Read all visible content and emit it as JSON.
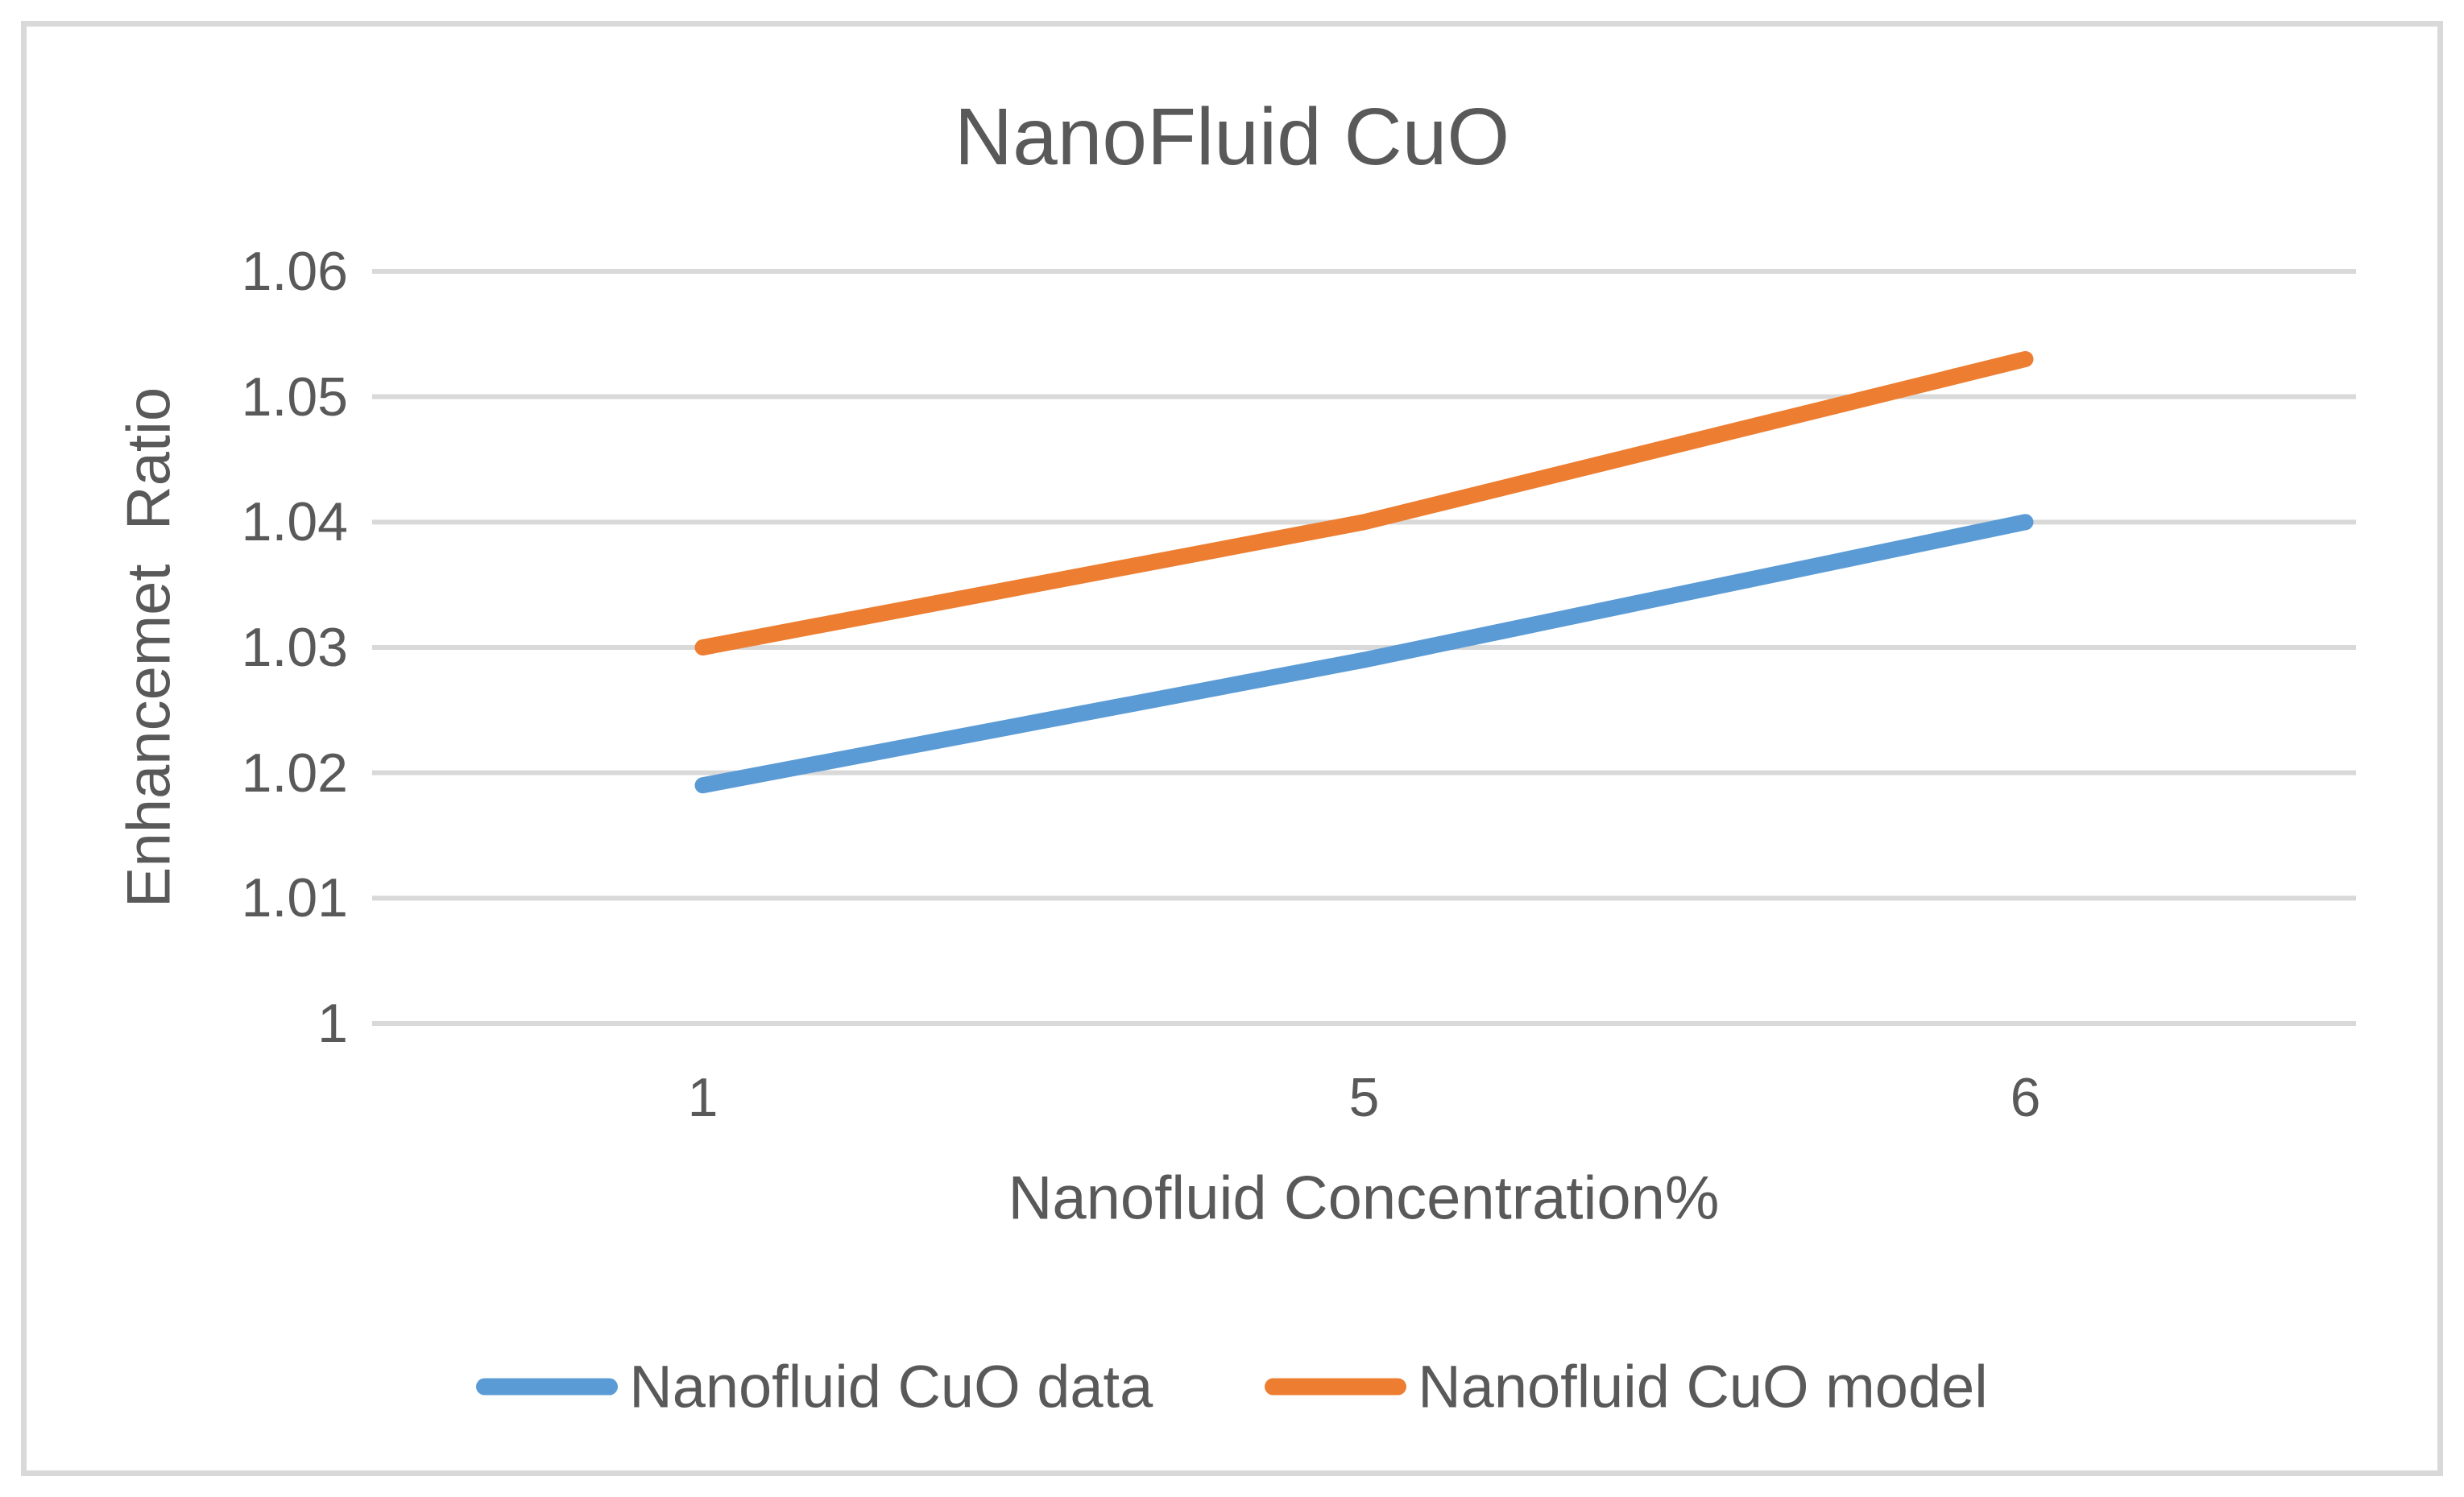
{
  "chart_data": {
    "type": "line",
    "title": "NanoFluid CuO",
    "xlabel": "Nanofluid Concentration%",
    "ylabel": "Enhancemet  Ratio",
    "categories": [
      "1",
      "5",
      "6"
    ],
    "series": [
      {
        "name": "Nanofluid CuO data",
        "color": "#5B9BD5",
        "values": [
          1.019,
          1.029,
          1.04
        ]
      },
      {
        "name": "Nanofluid CuO model",
        "color": "#ED7D31",
        "values": [
          1.03,
          1.04,
          1.053
        ]
      }
    ],
    "ylim": [
      1,
      1.06
    ],
    "yticks": [
      1,
      1.01,
      1.02,
      1.03,
      1.04,
      1.05,
      1.06
    ],
    "ytick_labels": [
      "1",
      "1.01",
      "1.02",
      "1.03",
      "1.04",
      "1.05",
      "1.06"
    ],
    "grid": true,
    "legend_position": "bottom"
  },
  "colors": {
    "text": "#595959",
    "gridline": "#D9D9D9",
    "frame_border": "#D9D9D9",
    "background": "#FFFFFF"
  }
}
